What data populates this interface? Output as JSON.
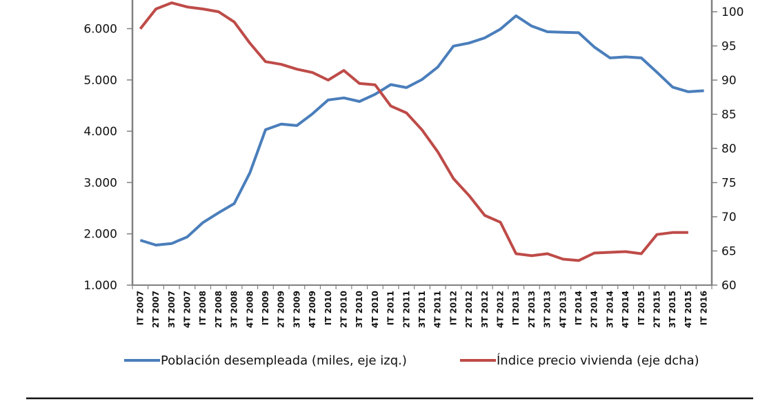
{
  "chart_data": {
    "type": "line",
    "title": "",
    "xlabel": "",
    "ylabel": "",
    "categories": [
      "IT 2007",
      "2T 2007",
      "3T 2007",
      "4T 2007",
      "IT 2008",
      "2T 2008",
      "3T 2008",
      "4T 2008",
      "IT 2009",
      "2T 2009",
      "3T 2009",
      "4T 2009",
      "IT 2010",
      "2T 2010",
      "3T 2010",
      "4T 2010",
      "IT 2011",
      "2T 2011",
      "3T 2011",
      "4T 2011",
      "IT 2012",
      "2T 2012",
      "3T 2012",
      "4T 2012",
      "IT 2013",
      "2T 2013",
      "3T 2013",
      "4T 2013",
      "IT 2014",
      "2T 2014",
      "3T 2014",
      "4T 2014",
      "IT 2015",
      "2T 2015",
      "3T 2015",
      "4T 2015",
      "IT 2016"
    ],
    "y_left": {
      "ticks": [
        1000,
        2000,
        3000,
        4000,
        5000,
        6000
      ],
      "tick_labels": [
        "1.000",
        "2.000",
        "3.000",
        "4.000",
        "5.000",
        "6.000"
      ],
      "ylim": [
        1000,
        7000
      ]
    },
    "y_right": {
      "ticks": [
        60,
        65,
        70,
        75,
        80,
        85,
        90,
        95,
        100
      ],
      "tick_labels": [
        "60",
        "65",
        "70",
        "75",
        "80",
        "85",
        "90",
        "95",
        "100"
      ],
      "ylim": [
        60,
        105
      ]
    },
    "grid": false,
    "legend": "bottom",
    "series": [
      {
        "name": "Población desempleada (miles, eje izq.)",
        "axis": "left",
        "color": "#4a7ebb",
        "values": [
          1875,
          1780,
          1810,
          1940,
          2220,
          2410,
          2590,
          3190,
          4030,
          4140,
          4110,
          4340,
          4610,
          4650,
          4580,
          4720,
          4910,
          4850,
          5010,
          5250,
          5660,
          5720,
          5820,
          5990,
          6250,
          6050,
          5940,
          5930,
          5920,
          5640,
          5430,
          5450,
          5430,
          5150,
          4860,
          4770,
          4790
        ]
      },
      {
        "name": "Índice precio vivienda (eje dcha)",
        "axis": "right",
        "color": "#be4b48",
        "values": [
          97.5,
          100.4,
          101.3,
          100.7,
          100.4,
          100.0,
          98.5,
          95.4,
          92.7,
          92.3,
          91.6,
          91.1,
          90.0,
          91.4,
          89.5,
          89.3,
          86.2,
          85.2,
          82.7,
          79.5,
          75.6,
          73.1,
          70.2,
          69.2,
          64.6,
          64.3,
          64.6,
          63.8,
          63.6,
          64.7,
          64.8,
          64.9,
          64.6,
          67.4,
          67.7,
          67.7,
          null
        ]
      }
    ]
  }
}
